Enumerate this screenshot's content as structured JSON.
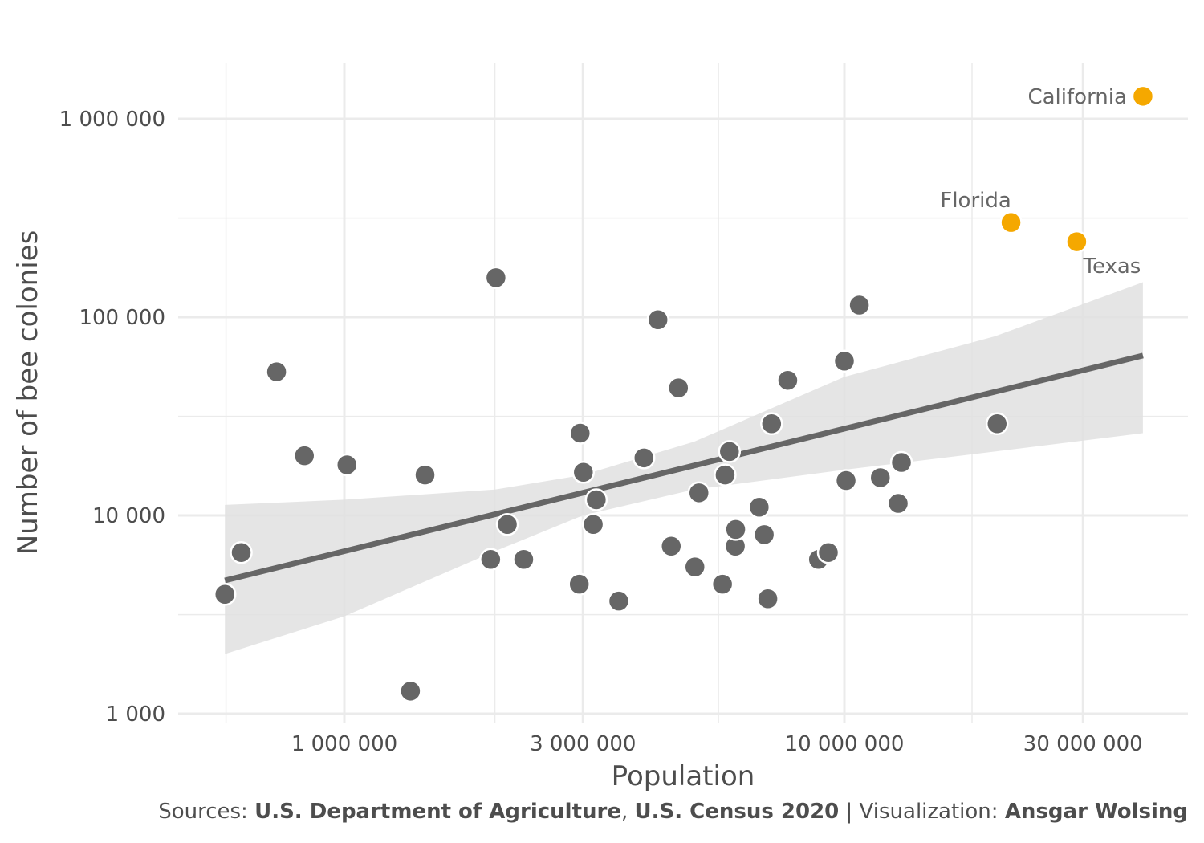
{
  "chart_data": {
    "type": "scatter",
    "title": "",
    "xlabel": "Population",
    "ylabel": "Number of bee colonies",
    "x_scale": "log10",
    "y_scale": "log10",
    "xlim": [
      500000,
      50000000
    ],
    "ylim": [
      800,
      2000000
    ],
    "x_ticks": [
      {
        "value": 1000000,
        "label": "1 000 000"
      },
      {
        "value": 3000000,
        "label": "3 000 000"
      },
      {
        "value": 10000000,
        "label": "10 000 000"
      },
      {
        "value": 30000000,
        "label": "30 000 000"
      }
    ],
    "x_minor_ticks": [
      580000,
      2000000,
      5600000,
      18000000
    ],
    "y_ticks": [
      {
        "value": 1000,
        "label": "1 000"
      },
      {
        "value": 10000,
        "label": "10 000"
      },
      {
        "value": 100000,
        "label": "100 000"
      },
      {
        "value": 1000000,
        "label": "1 000 000"
      }
    ],
    "y_minor_ticks": [
      3160,
      31600,
      316000
    ],
    "grid": true,
    "colors": {
      "default": "#666666",
      "highlight": "#f5a800",
      "band": "#e0e0e0",
      "grid": "#ebebeb"
    },
    "series": [
      {
        "points": [
          [
            577000,
            4000
          ],
          [
            622000,
            6500
          ],
          [
            732000,
            53000
          ],
          [
            832000,
            20000
          ],
          [
            1012000,
            18000
          ],
          [
            1356000,
            1300
          ],
          [
            1450000,
            16000
          ],
          [
            1962000,
            6000
          ],
          [
            2010000,
            158000
          ],
          [
            2118000,
            9000
          ],
          [
            2284000,
            6000
          ],
          [
            2950000,
            4500
          ],
          [
            2962000,
            26000
          ],
          [
            3006000,
            16500
          ],
          [
            3146000,
            9000
          ],
          [
            3190000,
            12000
          ],
          [
            3539000,
            3700
          ],
          [
            3973000,
            19500
          ],
          [
            4238000,
            97000
          ],
          [
            4505000,
            7000
          ],
          [
            4658000,
            44000
          ],
          [
            5024000,
            5500
          ],
          [
            5118000,
            13000
          ],
          [
            5705000,
            4500
          ],
          [
            5774000,
            16000
          ],
          [
            5890000,
            21000
          ],
          [
            6052000,
            7000
          ],
          [
            6062000,
            8500
          ],
          [
            6755000,
            11000
          ],
          [
            6914000,
            8000
          ],
          [
            7029000,
            3800
          ],
          [
            7152000,
            29000
          ],
          [
            7705000,
            48000
          ],
          [
            8875000,
            6000
          ],
          [
            9287000,
            6500
          ],
          [
            10000000,
            60000
          ],
          [
            10077000,
            15000
          ],
          [
            10712000,
            115000
          ],
          [
            11799000,
            15500
          ],
          [
            12813000,
            11500
          ],
          [
            13002000,
            18500
          ],
          [
            20201000,
            29000
          ]
        ]
      },
      {
        "name": "highlighted",
        "points": [
          {
            "x": 21538000,
            "y": 300000,
            "label": "Florida"
          },
          {
            "x": 29146000,
            "y": 240000,
            "label": "Texas"
          },
          {
            "x": 39538000,
            "y": 1300000,
            "label": "California"
          }
        ]
      }
    ],
    "trend_line": {
      "x_start": 577000,
      "y_start": 4700,
      "x_end": 39538000,
      "y_end": 64000
    },
    "confidence_band": {
      "x": [
        577000,
        1000000,
        2000000,
        3000000,
        5000000,
        10000000,
        20000000,
        39538000
      ],
      "upper": [
        11300,
        12000,
        13500,
        16000,
        23500,
        50000,
        80000,
        150000
      ],
      "lower": [
        2000,
        3100,
        6600,
        10000,
        13500,
        17000,
        21000,
        26000
      ]
    }
  },
  "caption": {
    "prefix": "Sources: ",
    "source1": "U.S. Department of Agriculture",
    "sep1": ", ",
    "source2": "U.S. Census 2020",
    "sep2": " | Visualization: ",
    "author": "Ansgar Wolsing"
  }
}
